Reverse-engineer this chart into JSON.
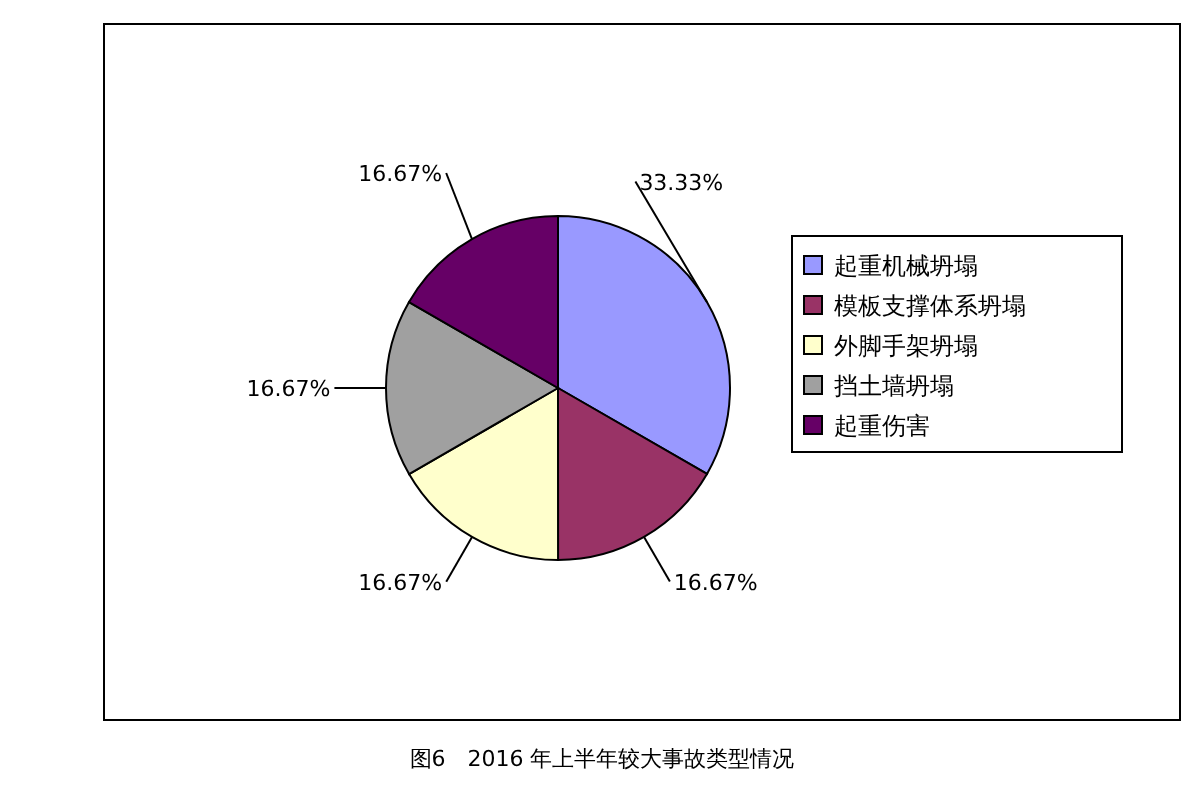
{
  "chart_data": {
    "type": "pie",
    "title": "图6　2016 年上半年较大事故类型情况",
    "categories": [
      "起重机械坍塌",
      "模板支撑体系坍塌",
      "外脚手架坍塌",
      "挡土墙坍塌",
      "起重伤害"
    ],
    "values": [
      33.33,
      16.67,
      16.67,
      16.67,
      16.67
    ],
    "value_labels": [
      "33.33%",
      "16.67%",
      "16.67%",
      "16.67%",
      "16.67%"
    ],
    "colors": [
      "#9999ff",
      "#993366",
      "#ffffcc",
      "#a0a0a0",
      "#660066"
    ],
    "legend": "right"
  }
}
